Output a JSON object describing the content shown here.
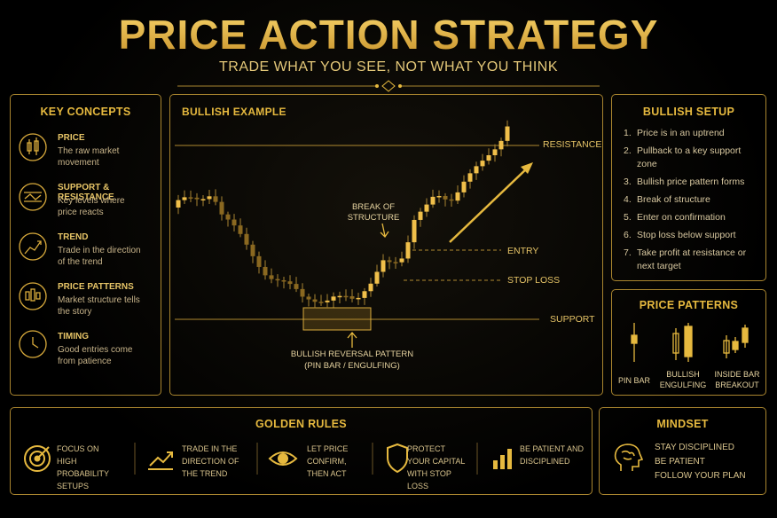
{
  "header": {
    "title": "PRICE ACTION STRATEGY",
    "subtitle": "TRADE WHAT YOU SEE, NOT WHAT YOU THINK"
  },
  "key_concepts": {
    "title": "KEY CONCEPTS",
    "items": [
      {
        "title": "PRICE",
        "text": "The raw market movement"
      },
      {
        "title": "SUPPORT & RESISTANCE",
        "text": "Key levels where price reacts"
      },
      {
        "title": "TREND",
        "text": "Trade in the direction of the trend"
      },
      {
        "title": "PRICE PATTERNS",
        "text": "Market structure tells the story"
      },
      {
        "title": "TIMING",
        "text": "Good entries come from patience"
      }
    ]
  },
  "example": {
    "title": "BULLISH EXAMPLE",
    "resistance": "RESISTANCE",
    "entry": "ENTRY",
    "stop_loss": "STOP LOSS",
    "support": "SUPPORT",
    "break": "BREAK OF STRUCTURE",
    "pattern": "BULLISH REVERSAL PATTERN",
    "pattern_sub": "(PIN BAR / ENGULFING)"
  },
  "bullish_setup": {
    "title": "BULLISH SETUP",
    "steps": [
      {
        "number": "1.",
        "text": "Price is in an uptrend"
      },
      {
        "number": "2.",
        "text": "Pullback to a key support zone"
      },
      {
        "number": "3.",
        "text": "Bullish price pattern forms"
      },
      {
        "number": "4.",
        "text": "Break of structure"
      },
      {
        "number": "5.",
        "text": "Enter on confirmation"
      },
      {
        "number": "6.",
        "text": "Stop loss below support"
      },
      {
        "number": "7.",
        "text": "Take profit at resistance or next target"
      }
    ]
  },
  "price_patterns": {
    "title": "PRICE PATTERNS",
    "items": [
      "PIN BAR",
      "BULLISH ENGULFING",
      "INSIDE BAR BREAKOUT"
    ]
  },
  "golden_rules": {
    "title": "GOLDEN RULES",
    "items": [
      "FOCUS ON HIGH PROBABILITY SETUPS",
      "TRADE IN THE DIRECTION OF THE TREND",
      "LET PRICE CONFIRM, THEN ACT",
      "PROTECT YOUR CAPITAL WITH STOP LOSS",
      "BE PATIENT AND DISCIPLINED"
    ]
  },
  "mindset": {
    "title": "MINDSET",
    "items": [
      "STAY DISCIPLINED",
      "BE PATIENT",
      "FOLLOW YOUR PLAN"
    ]
  }
}
